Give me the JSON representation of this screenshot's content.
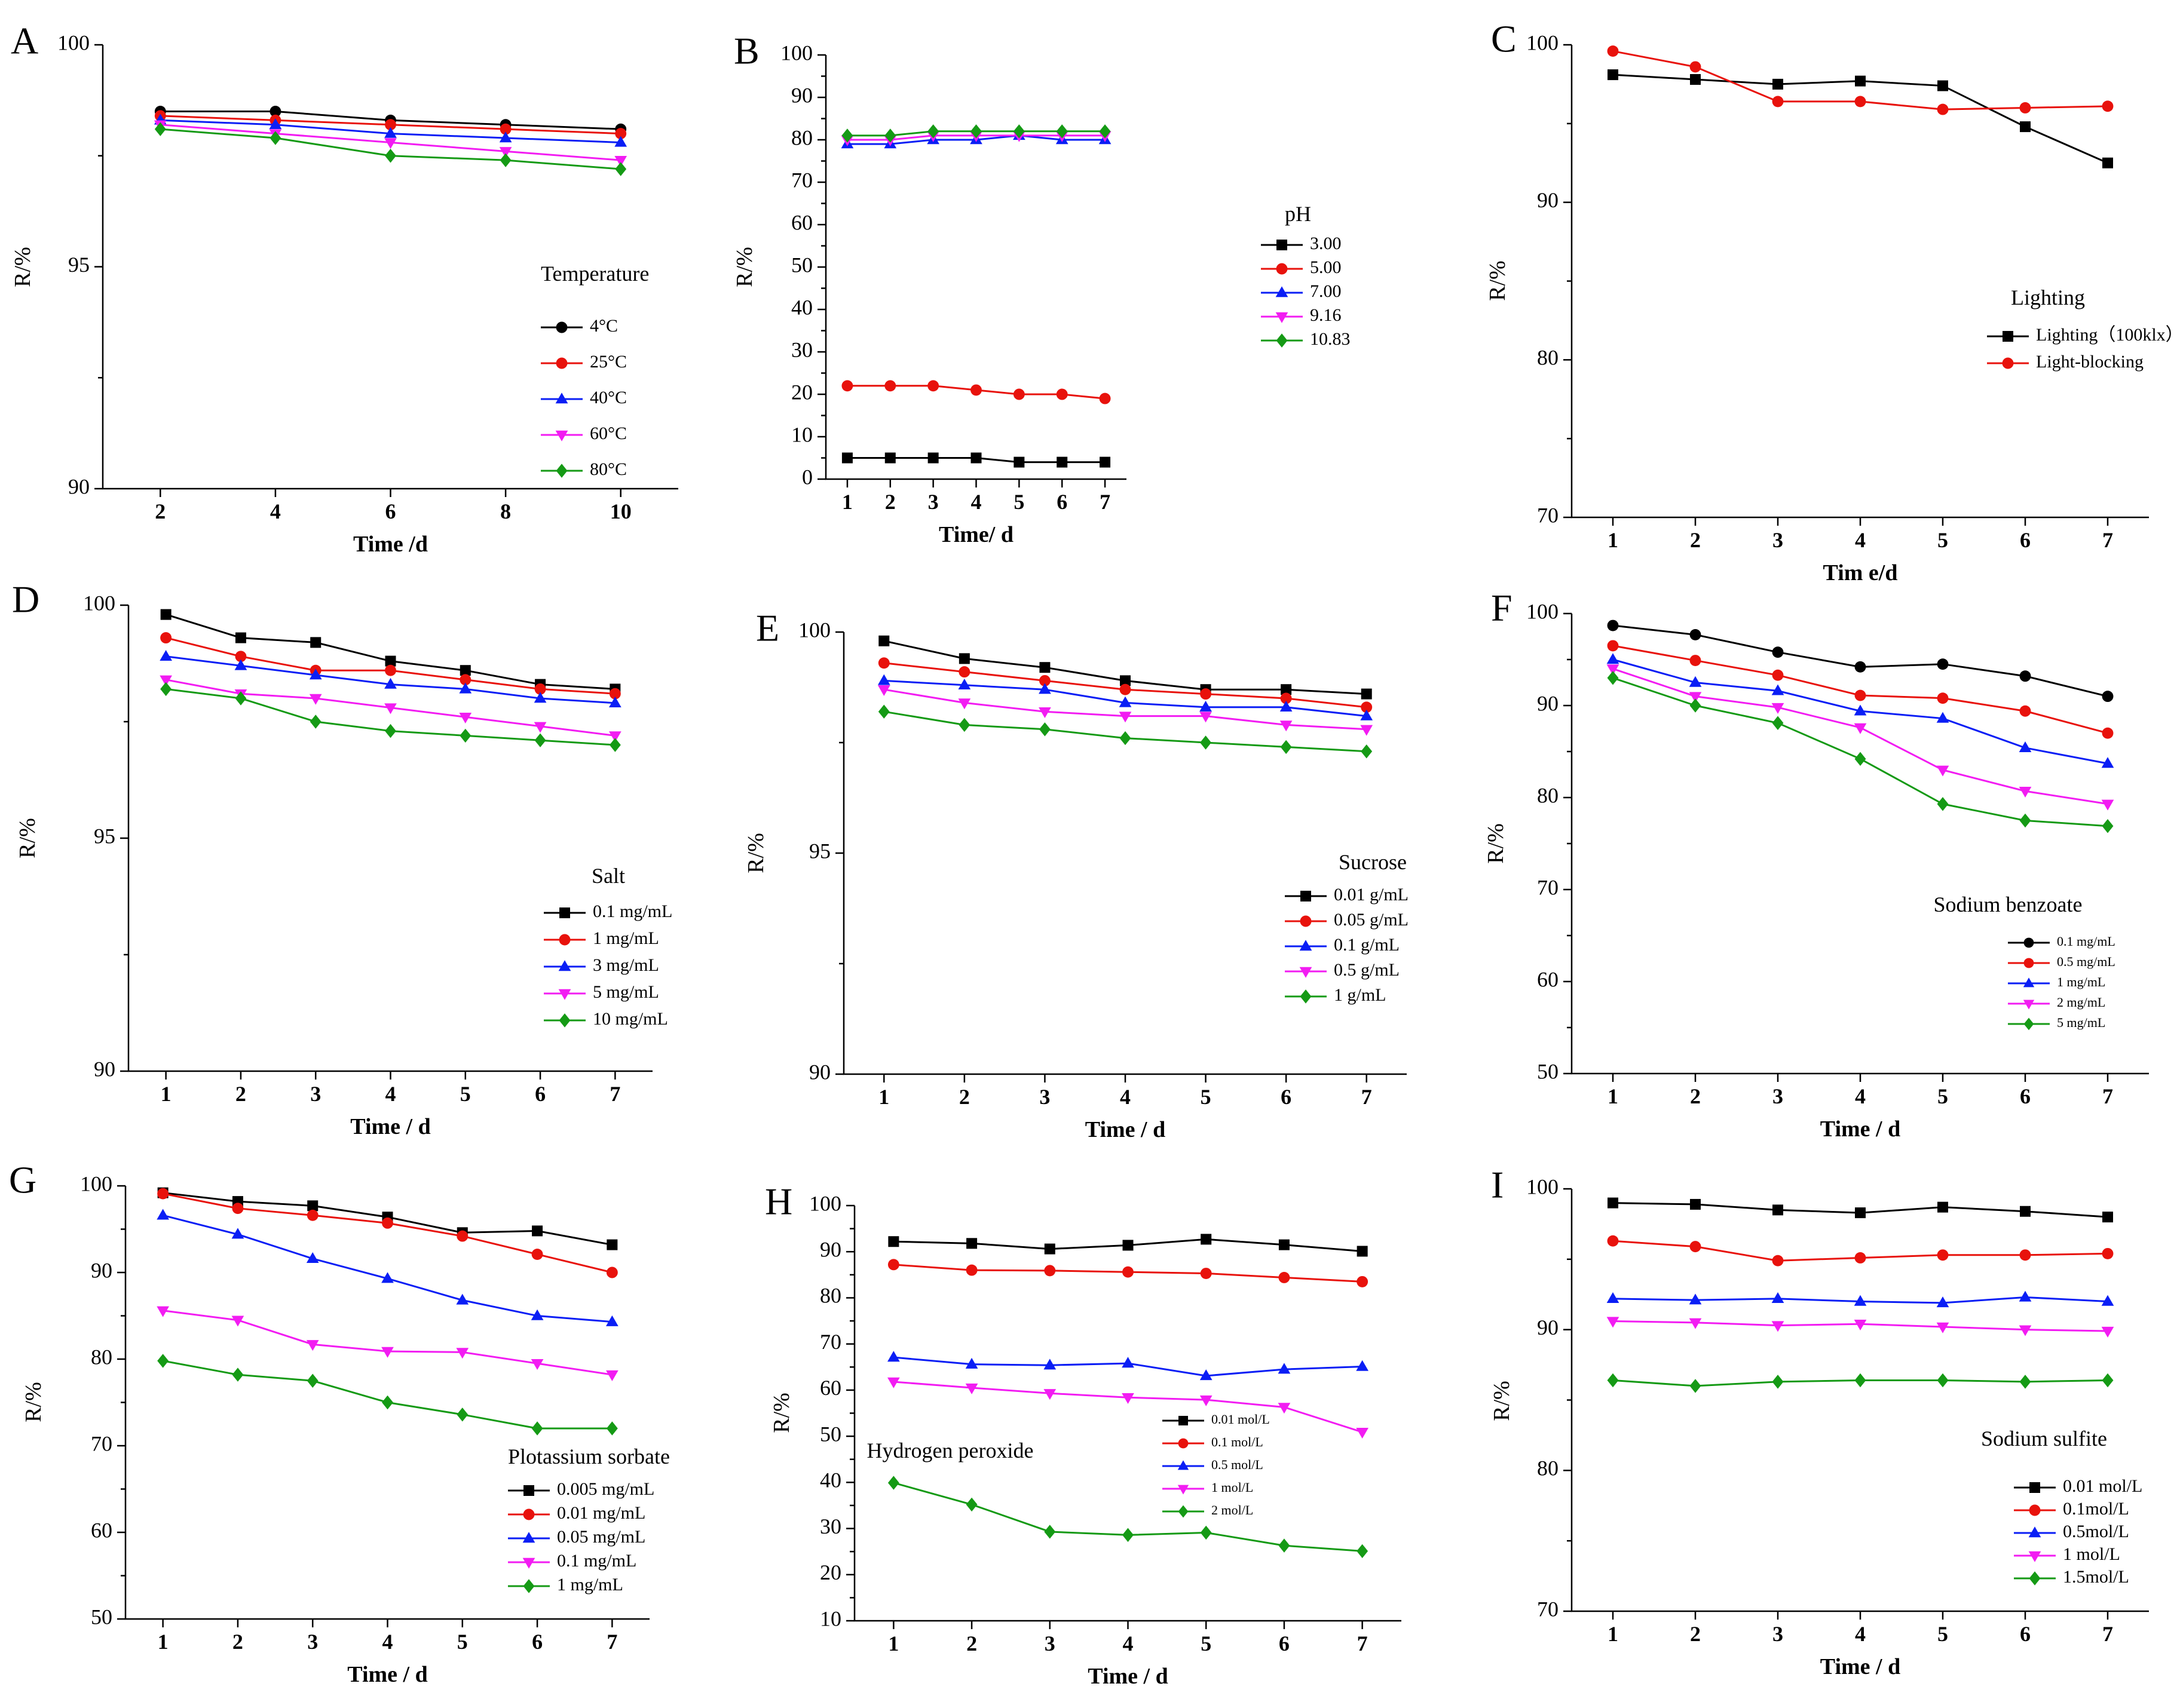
{
  "chart_data": [
    {
      "panel": "A",
      "type": "line",
      "x": [
        2,
        4,
        6,
        8,
        10
      ],
      "xlim": [
        1,
        11
      ],
      "xticks": [
        2,
        4,
        6,
        8,
        10
      ],
      "ylim": [
        90,
        100
      ],
      "yticks": [
        90,
        95,
        100
      ],
      "xlabel": "Time /d",
      "ylabel": "R/%",
      "legend_title": "Temperature",
      "legend_size": "normal",
      "series": [
        {
          "name": "4°C",
          "color": "#000000",
          "marker": "circle",
          "values": [
            98.5,
            98.5,
            98.3,
            98.2,
            98.1
          ]
        },
        {
          "name": "25°C",
          "color": "#e8120c",
          "marker": "circle",
          "values": [
            98.4,
            98.3,
            98.2,
            98.1,
            98.0
          ]
        },
        {
          "name": "40°C",
          "color": "#0a1ef5",
          "marker": "triangle",
          "values": [
            98.3,
            98.2,
            98.0,
            97.9,
            97.8
          ]
        },
        {
          "name": "60°C",
          "color": "#f21cf2",
          "marker": "tri-down",
          "values": [
            98.2,
            98.0,
            97.8,
            97.6,
            97.4
          ]
        },
        {
          "name": "80°C",
          "color": "#159a15",
          "marker": "diamond",
          "values": [
            98.1,
            97.9,
            97.5,
            97.4,
            97.2
          ]
        }
      ]
    },
    {
      "panel": "B",
      "type": "line",
      "x": [
        1,
        2,
        3,
        4,
        5,
        6,
        7
      ],
      "xlim": [
        0.5,
        7.5
      ],
      "xticks": [
        1,
        2,
        3,
        4,
        5,
        6,
        7
      ],
      "ylim": [
        0,
        100
      ],
      "yticks": [
        0,
        10,
        20,
        30,
        40,
        50,
        60,
        70,
        80,
        90,
        100
      ],
      "xlabel": "Time/ d",
      "ylabel": "R/%",
      "legend_title": "pH",
      "legend_size": "normal",
      "series": [
        {
          "name": "3.00",
          "color": "#000000",
          "marker": "square",
          "values": [
            5,
            5,
            5,
            5,
            4,
            4,
            4
          ]
        },
        {
          "name": "5.00",
          "color": "#e8120c",
          "marker": "circle",
          "values": [
            22,
            22,
            22,
            21,
            20,
            20,
            19
          ]
        },
        {
          "name": "7.00",
          "color": "#0a1ef5",
          "marker": "triangle",
          "values": [
            79,
            79,
            80,
            80,
            81,
            80,
            80
          ]
        },
        {
          "name": "9.16",
          "color": "#f21cf2",
          "marker": "tri-down",
          "values": [
            80,
            80,
            81,
            81,
            81,
            81,
            81
          ]
        },
        {
          "name": "10.83",
          "color": "#159a15",
          "marker": "diamond",
          "values": [
            81,
            81,
            82,
            82,
            82,
            82,
            82
          ]
        }
      ]
    },
    {
      "panel": "C",
      "type": "line",
      "x": [
        1,
        2,
        3,
        4,
        5,
        6,
        7
      ],
      "xlim": [
        0.5,
        7.5
      ],
      "xticks": [
        1,
        2,
        3,
        4,
        5,
        6,
        7
      ],
      "ylim": [
        70,
        100
      ],
      "yticks": [
        70,
        80,
        90,
        100
      ],
      "xlabel": "Tim e/d",
      "ylabel": "R/%",
      "legend_title": "Lighting",
      "legend_size": "normal",
      "series": [
        {
          "name": "Lighting（100klx）",
          "color": "#000000",
          "marker": "square",
          "values": [
            98.1,
            97.8,
            97.5,
            97.7,
            97.4,
            94.8,
            92.5
          ]
        },
        {
          "name": "Light-blocking",
          "color": "#e8120c",
          "marker": "circle",
          "values": [
            99.6,
            98.6,
            96.4,
            96.4,
            95.9,
            96.0,
            96.1
          ]
        }
      ]
    },
    {
      "panel": "D",
      "type": "line",
      "x": [
        1,
        2,
        3,
        4,
        5,
        6,
        7
      ],
      "xlim": [
        0.5,
        7.5
      ],
      "xticks": [
        1,
        2,
        3,
        4,
        5,
        6,
        7
      ],
      "ylim": [
        90,
        100
      ],
      "yticks": [
        90,
        95,
        100
      ],
      "xlabel": "Time / d",
      "ylabel": "R/%",
      "legend_title": "Salt",
      "legend_size": "normal",
      "series": [
        {
          "name": "0.1 mg/mL",
          "color": "#000000",
          "marker": "square",
          "values": [
            99.8,
            99.3,
            99.2,
            98.8,
            98.6,
            98.3,
            98.2
          ]
        },
        {
          "name": "1 mg/mL",
          "color": "#e8120c",
          "marker": "circle",
          "values": [
            99.3,
            98.9,
            98.6,
            98.6,
            98.4,
            98.2,
            98.1
          ]
        },
        {
          "name": "3 mg/mL",
          "color": "#0a1ef5",
          "marker": "triangle",
          "values": [
            98.9,
            98.7,
            98.5,
            98.3,
            98.2,
            98.0,
            97.9
          ]
        },
        {
          "name": "5 mg/mL",
          "color": "#f21cf2",
          "marker": "tri-down",
          "values": [
            98.4,
            98.1,
            98.0,
            97.8,
            97.6,
            97.4,
            97.2
          ]
        },
        {
          "name": "10 mg/mL",
          "color": "#159a15",
          "marker": "diamond",
          "values": [
            98.2,
            98.0,
            97.5,
            97.3,
            97.2,
            97.1,
            97.0
          ]
        }
      ]
    },
    {
      "panel": "E",
      "type": "line",
      "x": [
        1,
        2,
        3,
        4,
        5,
        6,
        7
      ],
      "xlim": [
        0.5,
        7.5
      ],
      "xticks": [
        1,
        2,
        3,
        4,
        5,
        6,
        7
      ],
      "ylim": [
        90,
        100
      ],
      "yticks": [
        90,
        95,
        100
      ],
      "xlabel": "Time / d",
      "ylabel": "R/%",
      "legend_title": "Sucrose",
      "legend_size": "normal",
      "series": [
        {
          "name": "0.01 g/mL",
          "color": "#000000",
          "marker": "square",
          "values": [
            99.8,
            99.4,
            99.2,
            98.9,
            98.7,
            98.7,
            98.6
          ]
        },
        {
          "name": "0.05 g/mL",
          "color": "#e8120c",
          "marker": "circle",
          "values": [
            99.3,
            99.1,
            98.9,
            98.7,
            98.6,
            98.5,
            98.3
          ]
        },
        {
          "name": "0.1 g/mL",
          "color": "#0a1ef5",
          "marker": "triangle",
          "values": [
            98.9,
            98.8,
            98.7,
            98.4,
            98.3,
            98.3,
            98.1
          ]
        },
        {
          "name": "0.5 g/mL",
          "color": "#f21cf2",
          "marker": "tri-down",
          "values": [
            98.7,
            98.4,
            98.2,
            98.1,
            98.1,
            97.9,
            97.8
          ]
        },
        {
          "name": "1 g/mL",
          "color": "#159a15",
          "marker": "diamond",
          "values": [
            98.2,
            97.9,
            97.8,
            97.6,
            97.5,
            97.4,
            97.3
          ]
        }
      ]
    },
    {
      "panel": "F",
      "type": "line",
      "x": [
        1,
        2,
        3,
        4,
        5,
        6,
        7
      ],
      "xlim": [
        0.5,
        7.5
      ],
      "xticks": [
        1,
        2,
        3,
        4,
        5,
        6,
        7
      ],
      "ylim": [
        50,
        100
      ],
      "yticks": [
        50,
        60,
        70,
        80,
        90,
        100
      ],
      "xlabel": "Time / d",
      "ylabel": "R/%",
      "legend_title": "Sodium benzoate",
      "legend_size": "small",
      "series": [
        {
          "name": "0.1 mg/mL",
          "color": "#000000",
          "marker": "circle",
          "values": [
            98.7,
            97.7,
            95.8,
            94.2,
            94.5,
            93.2,
            91.0
          ]
        },
        {
          "name": "0.5 mg/mL",
          "color": "#e8120c",
          "marker": "circle",
          "values": [
            96.5,
            94.9,
            93.3,
            91.1,
            90.8,
            89.4,
            87.0
          ]
        },
        {
          "name": "1 mg/mL",
          "color": "#0a1ef5",
          "marker": "triangle",
          "values": [
            95.0,
            92.5,
            91.6,
            89.4,
            88.6,
            85.4,
            83.7
          ]
        },
        {
          "name": "2 mg/mL",
          "color": "#f21cf2",
          "marker": "tri-down",
          "values": [
            94.0,
            91.0,
            89.8,
            87.6,
            83.0,
            80.7,
            79.3
          ]
        },
        {
          "name": "5 mg/mL",
          "color": "#159a15",
          "marker": "diamond",
          "values": [
            93.0,
            90.0,
            88.1,
            84.2,
            79.3,
            77.5,
            76.9
          ]
        }
      ]
    },
    {
      "panel": "G",
      "type": "line",
      "x": [
        1,
        2,
        3,
        4,
        5,
        6,
        7
      ],
      "xlim": [
        0.5,
        7.5
      ],
      "xticks": [
        1,
        2,
        3,
        4,
        5,
        6,
        7
      ],
      "ylim": [
        50,
        100
      ],
      "yticks": [
        50,
        60,
        70,
        80,
        90,
        100
      ],
      "xlabel": "Time / d",
      "ylabel": "R/%",
      "legend_title": "Plotassium sorbate",
      "legend_size": "normal",
      "series": [
        {
          "name": "0.005 mg/mL",
          "color": "#000000",
          "marker": "square",
          "values": [
            99.2,
            98.2,
            97.7,
            96.4,
            94.6,
            94.8,
            93.2
          ]
        },
        {
          "name": "0.01 mg/mL",
          "color": "#e8120c",
          "marker": "circle",
          "values": [
            99.1,
            97.4,
            96.6,
            95.7,
            94.2,
            92.1,
            90.0
          ]
        },
        {
          "name": "0.05 mg/mL",
          "color": "#0a1ef5",
          "marker": "triangle",
          "values": [
            96.6,
            94.4,
            91.6,
            89.3,
            86.8,
            85.0,
            84.3
          ]
        },
        {
          "name": "0.1 mg/mL",
          "color": "#f21cf2",
          "marker": "tri-down",
          "values": [
            85.6,
            84.5,
            81.7,
            80.9,
            80.8,
            79.5,
            78.2
          ]
        },
        {
          "name": "1 mg/mL",
          "color": "#159a15",
          "marker": "diamond",
          "values": [
            79.8,
            78.2,
            77.5,
            75.0,
            73.6,
            72.0,
            72.0
          ]
        }
      ]
    },
    {
      "panel": "H",
      "type": "line",
      "x": [
        1,
        2,
        3,
        4,
        5,
        6,
        7
      ],
      "xlim": [
        0.5,
        7.5
      ],
      "xticks": [
        1,
        2,
        3,
        4,
        5,
        6,
        7
      ],
      "ylim": [
        10,
        100
      ],
      "yticks": [
        10,
        20,
        30,
        40,
        50,
        60,
        70,
        80,
        90,
        100
      ],
      "xlabel": "Time / d",
      "ylabel": "R/%",
      "legend_title": "Hydrogen peroxide",
      "legend_size": "small",
      "series": [
        {
          "name": "0.01 mol/L",
          "color": "#000000",
          "marker": "square",
          "values": [
            92.2,
            91.8,
            90.6,
            91.4,
            92.7,
            91.5,
            90.1
          ]
        },
        {
          "name": "0.1 mol/L",
          "color": "#e8120c",
          "marker": "circle",
          "values": [
            87.2,
            86.0,
            85.9,
            85.6,
            85.3,
            84.4,
            83.5
          ]
        },
        {
          "name": "0.5 mol/L",
          "color": "#0a1ef5",
          "marker": "triangle",
          "values": [
            67.1,
            65.6,
            65.4,
            65.8,
            63.1,
            64.5,
            65.1
          ]
        },
        {
          "name": "1 mol/L",
          "color": "#f21cf2",
          "marker": "tri-down",
          "values": [
            61.8,
            60.5,
            59.3,
            58.4,
            57.9,
            56.3,
            50.9
          ]
        },
        {
          "name": "2 mol/L",
          "color": "#159a15",
          "marker": "diamond",
          "values": [
            39.9,
            35.2,
            29.3,
            28.6,
            29.1,
            26.3,
            25.1
          ]
        }
      ]
    },
    {
      "panel": "I",
      "type": "line",
      "x": [
        1,
        2,
        3,
        4,
        5,
        6,
        7
      ],
      "xlim": [
        0.5,
        7.5
      ],
      "xticks": [
        1,
        2,
        3,
        4,
        5,
        6,
        7
      ],
      "ylim": [
        70,
        100
      ],
      "yticks": [
        70,
        80,
        90,
        100
      ],
      "xlabel": "Time / d",
      "ylabel": "R/%",
      "legend_title": "Sodium sulfite",
      "legend_size": "normal",
      "series": [
        {
          "name": "0.01 mol/L",
          "color": "#000000",
          "marker": "square",
          "values": [
            99.0,
            98.9,
            98.5,
            98.3,
            98.7,
            98.4,
            98.0
          ]
        },
        {
          "name": "0.1mol/L",
          "color": "#e8120c",
          "marker": "circle",
          "values": [
            96.3,
            95.9,
            94.9,
            95.1,
            95.3,
            95.3,
            95.4
          ]
        },
        {
          "name": "0.5mol/L",
          "color": "#0a1ef5",
          "marker": "triangle",
          "values": [
            92.2,
            92.1,
            92.2,
            92.0,
            91.9,
            92.3,
            92.0
          ]
        },
        {
          "name": "1 mol/L",
          "color": "#f21cf2",
          "marker": "tri-down",
          "values": [
            90.6,
            90.5,
            90.3,
            90.4,
            90.2,
            90.0,
            89.9
          ]
        },
        {
          "name": "1.5mol/L",
          "color": "#159a15",
          "marker": "diamond",
          "values": [
            86.4,
            86.0,
            86.3,
            86.4,
            86.4,
            86.3,
            86.4
          ]
        }
      ]
    }
  ]
}
